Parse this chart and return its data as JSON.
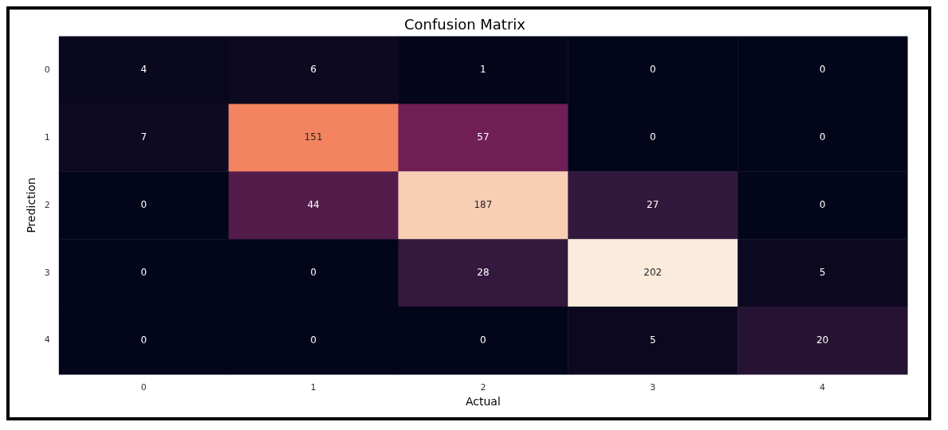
{
  "chart_data": {
    "type": "heatmap",
    "title": "Confusion Matrix",
    "xlabel": "Actual",
    "ylabel": "Prediction",
    "categories": [
      "0",
      "1",
      "2",
      "3",
      "4"
    ],
    "y_categories": [
      "0",
      "1",
      "2",
      "3",
      "4"
    ],
    "cells": [
      [
        4,
        6,
        1,
        0,
        0
      ],
      [
        7,
        151,
        57,
        0,
        0
      ],
      [
        0,
        44,
        187,
        27,
        0
      ],
      [
        0,
        0,
        28,
        202,
        5
      ],
      [
        0,
        0,
        0,
        5,
        20
      ]
    ],
    "data_labels": true,
    "grid": false,
    "legend": false
  }
}
